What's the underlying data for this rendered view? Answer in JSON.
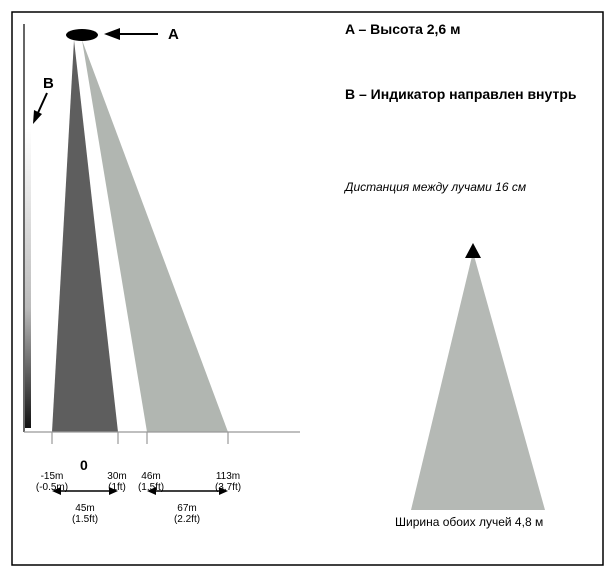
{
  "labels": {
    "A_marker": "A",
    "B_marker": "B",
    "A_desc": "A – Высота 2,6 м",
    "B_desc": "B – Индикатор направлен внутрь",
    "beam_distance": "Дистанция между лучами 16 см",
    "beam_width": "Ширина обоих лучей 4,8 м",
    "zero": "0"
  },
  "ticks": [
    {
      "m": "-15m",
      "ft": "(-0.5m)"
    },
    {
      "m": "30m",
      "ft": "(1ft)"
    },
    {
      "m": "46m",
      "ft": "(1.5ft)"
    },
    {
      "m": "113m",
      "ft": "(3.7ft)"
    }
  ],
  "spans": [
    {
      "m": "45m",
      "ft": "(1.5ft)"
    },
    {
      "m": "67m",
      "ft": "(2.2ft)"
    }
  ],
  "colors": {
    "beam_dark": "#5e5e5e",
    "beam_light": "#b1b6b1",
    "side_beam": "#b5b9b5",
    "axis": "#999999",
    "border": "#000000"
  }
}
